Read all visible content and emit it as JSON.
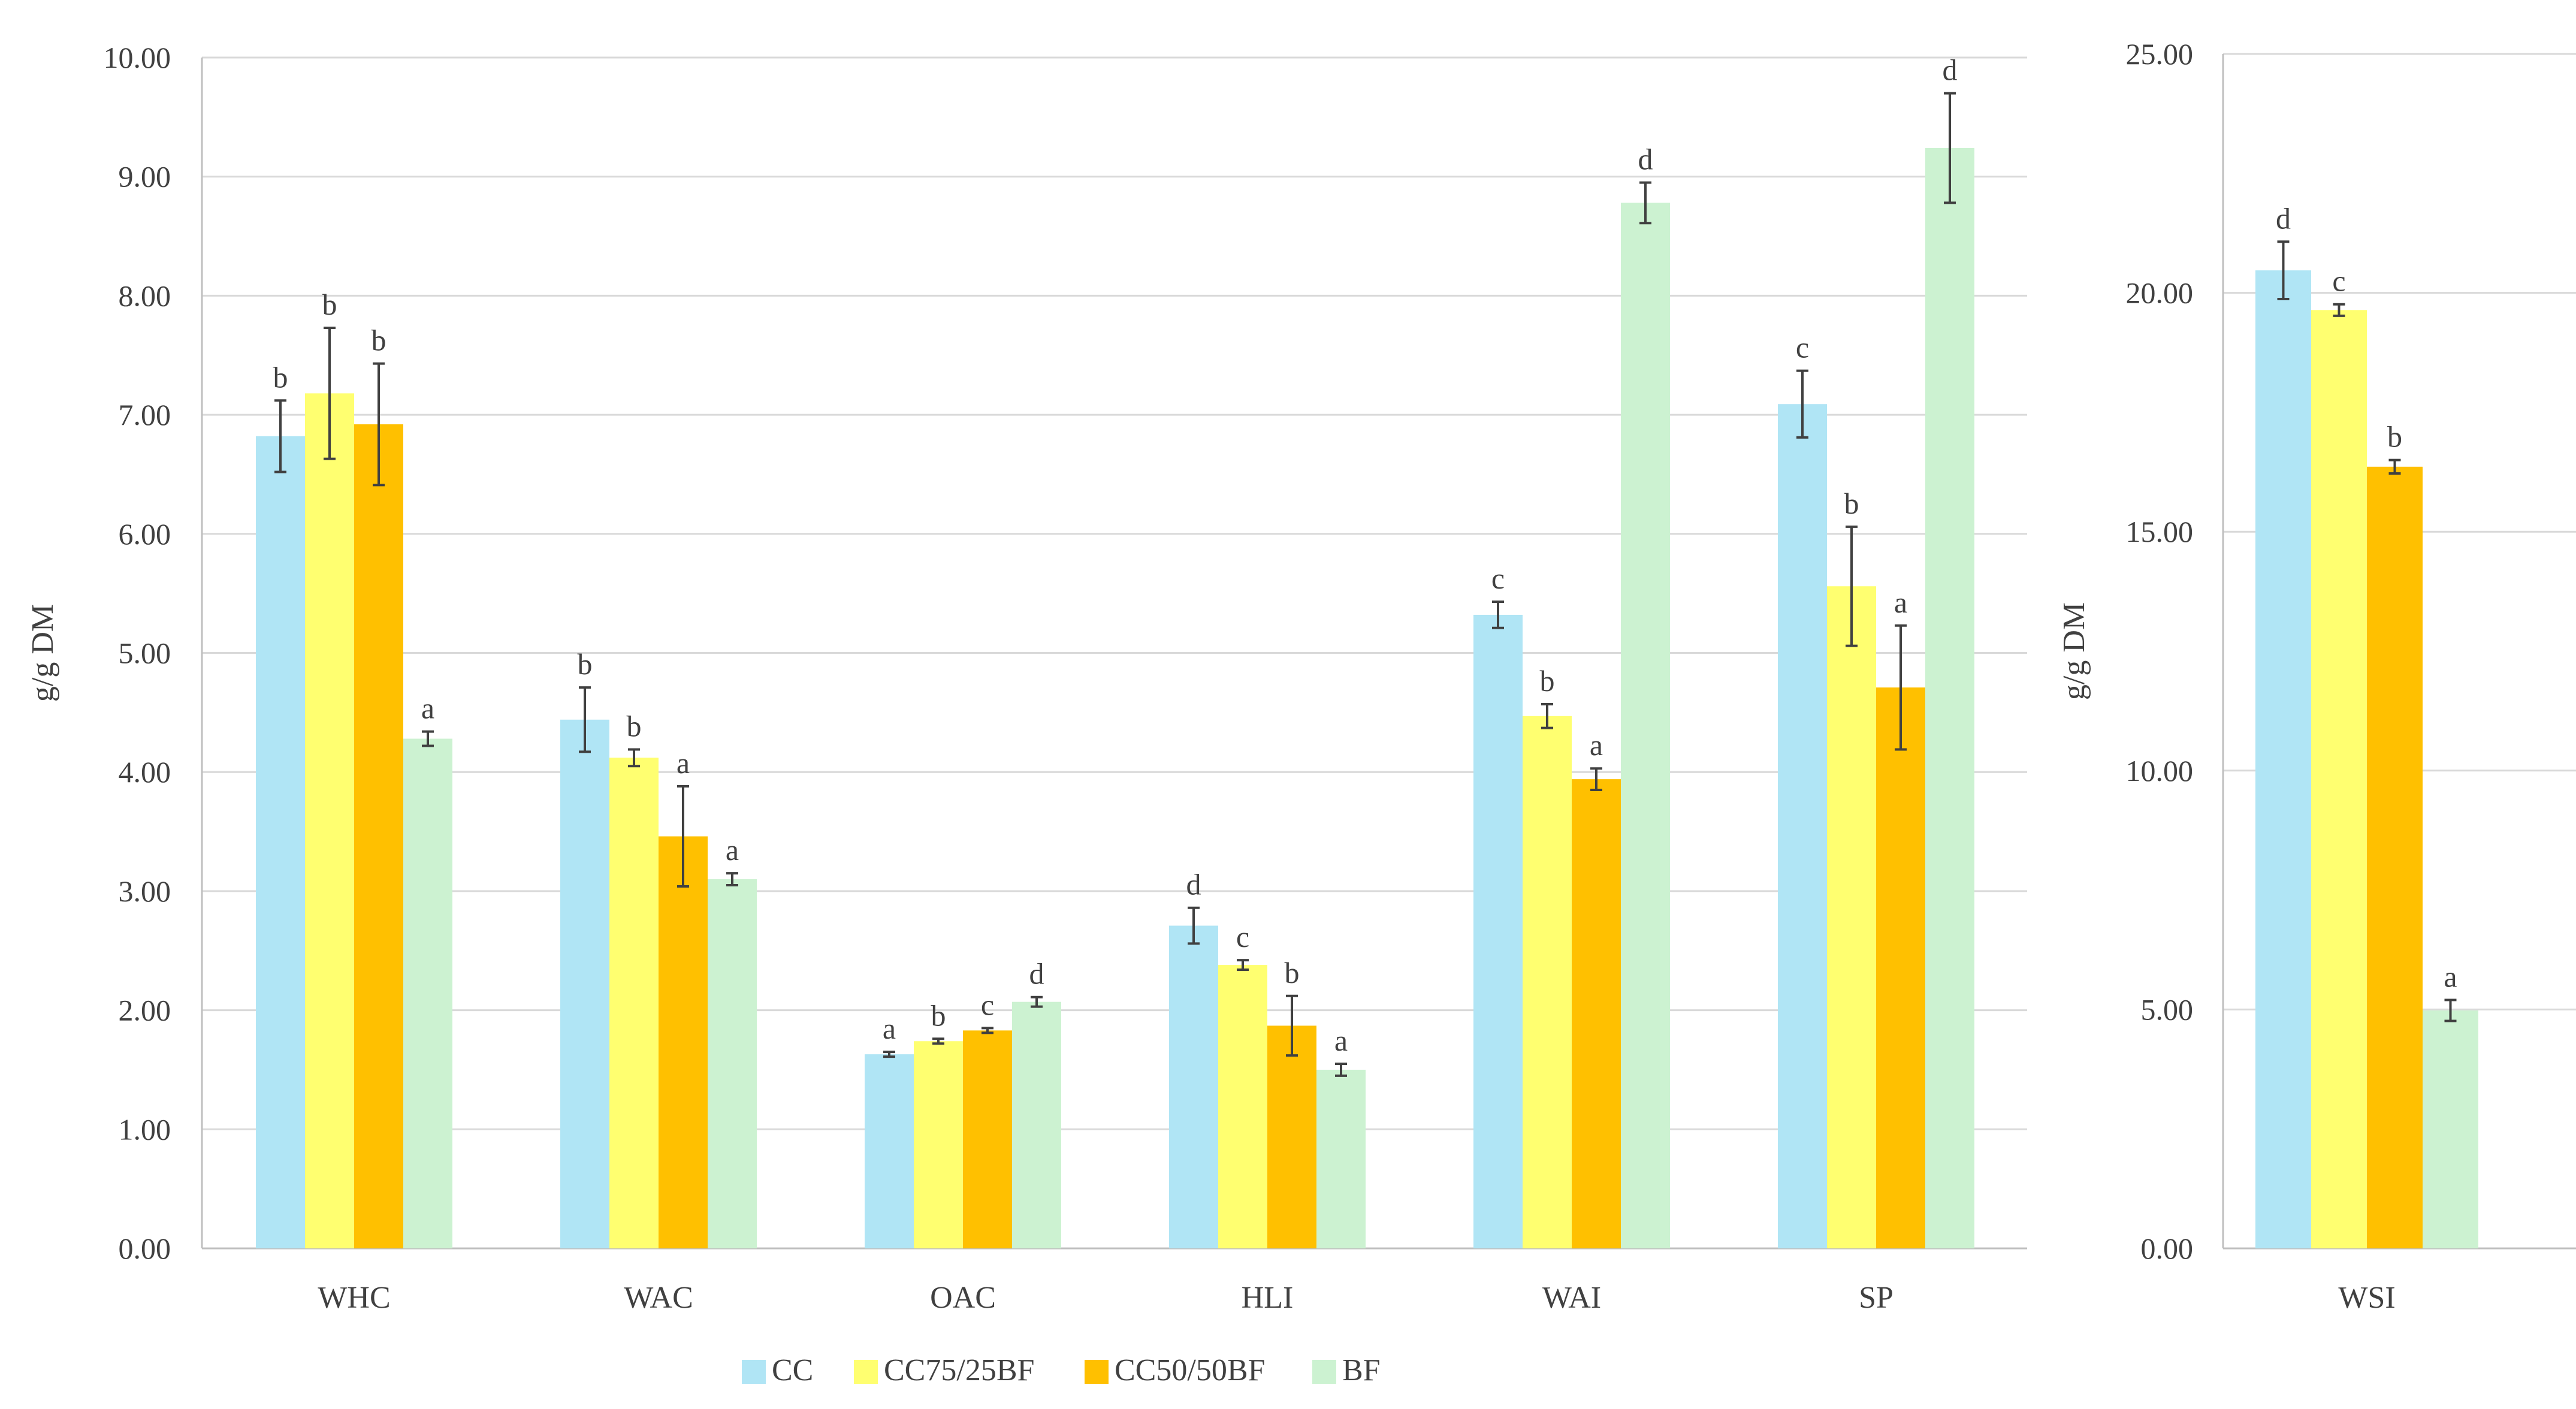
{
  "chart_data": [
    {
      "type": "bar",
      "ylabel": "g/g DM",
      "ylim": [
        0,
        10
      ],
      "ytick_step": 1,
      "ytick_labels": [
        "0.00",
        "1.00",
        "2.00",
        "3.00",
        "4.00",
        "5.00",
        "6.00",
        "7.00",
        "8.00",
        "9.00",
        "10.00"
      ],
      "categories": [
        "WHC",
        "WAC",
        "OAC",
        "HLI",
        "WAI",
        "SP"
      ],
      "series": [
        {
          "name": "CC",
          "color": "#b0e5f5",
          "values": [
            6.82,
            4.44,
            1.63,
            2.71,
            5.32,
            7.09
          ],
          "errors": [
            0.3,
            0.27,
            0.02,
            0.15,
            0.11,
            0.28
          ],
          "labels": [
            "b",
            "b",
            "a",
            "d",
            "c",
            "c"
          ]
        },
        {
          "name": "CC75/25BF",
          "color": "#ffff70",
          "values": [
            7.18,
            4.12,
            1.74,
            2.38,
            4.47,
            5.56
          ],
          "errors": [
            0.55,
            0.07,
            0.02,
            0.04,
            0.1,
            0.5
          ],
          "labels": [
            "b",
            "b",
            "b",
            "c",
            "b",
            "b"
          ]
        },
        {
          "name": "CC50/50BF",
          "color": "#ffc000",
          "values": [
            6.92,
            3.46,
            1.83,
            1.87,
            3.94,
            4.71
          ],
          "errors": [
            0.51,
            0.42,
            0.02,
            0.25,
            0.09,
            0.52
          ],
          "labels": [
            "b",
            "a",
            "c",
            "b",
            "a",
            "a"
          ]
        },
        {
          "name": "BF",
          "color": "#ccf2d1",
          "values": [
            4.28,
            3.1,
            2.07,
            1.5,
            8.78,
            9.24
          ],
          "errors": [
            0.06,
            0.05,
            0.04,
            0.05,
            0.17,
            0.46
          ],
          "labels": [
            "a",
            "a",
            "d",
            "a",
            "d",
            "d"
          ]
        }
      ]
    },
    {
      "type": "bar",
      "ylabel": "g/g DM",
      "ylim": [
        0,
        25
      ],
      "ytick_step": 5,
      "ytick_labels": [
        "0.00",
        "5.00",
        "10.00",
        "15.00",
        "20.00",
        "25.00"
      ],
      "categories": [
        "WSI"
      ],
      "series": [
        {
          "name": "CC",
          "color": "#b0e5f5",
          "values": [
            20.47
          ],
          "errors": [
            0.6
          ],
          "labels": [
            "d"
          ]
        },
        {
          "name": "CC75/25BF",
          "color": "#ffff70",
          "values": [
            19.64
          ],
          "errors": [
            0.12
          ],
          "labels": [
            "c"
          ]
        },
        {
          "name": "CC50/50BF",
          "color": "#ffc000",
          "values": [
            16.36
          ],
          "errors": [
            0.14
          ],
          "labels": [
            "b"
          ]
        },
        {
          "name": "BF",
          "color": "#ccf2d1",
          "values": [
            4.98
          ],
          "errors": [
            0.22
          ],
          "labels": [
            "a"
          ]
        }
      ]
    }
  ],
  "legend": [
    {
      "name": "CC",
      "color": "#b0e5f5"
    },
    {
      "name": "CC75/25BF",
      "color": "#ffff70"
    },
    {
      "name": "CC50/50BF",
      "color": "#ffc000"
    },
    {
      "name": "BF",
      "color": "#ccf2d1"
    }
  ]
}
